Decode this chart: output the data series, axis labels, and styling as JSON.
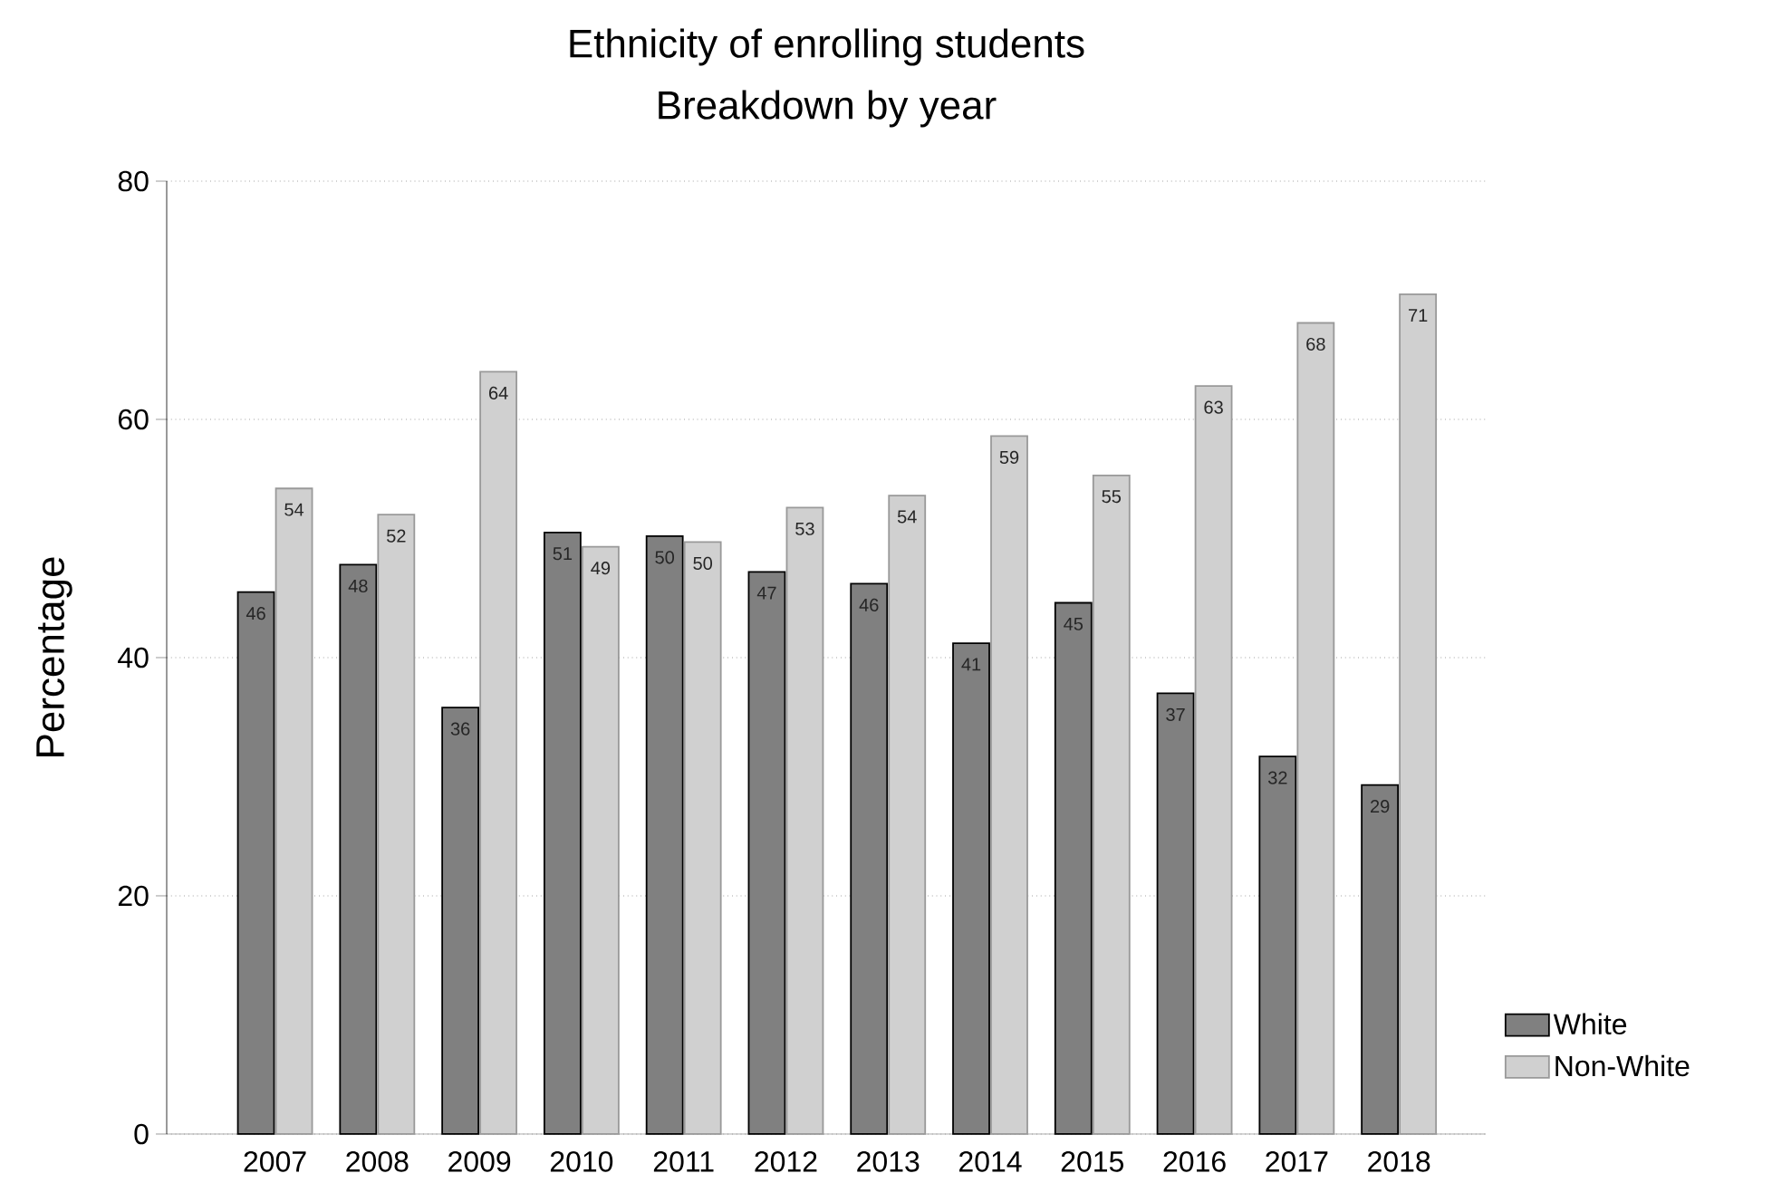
{
  "chart_data": {
    "type": "bar",
    "title": "Ethnicity of enrolling students",
    "subtitle": "Breakdown by year",
    "ylabel": "Percentage",
    "categories": [
      "2007",
      "2008",
      "2009",
      "2010",
      "2011",
      "2012",
      "2013",
      "2014",
      "2015",
      "2016",
      "2017",
      "2018"
    ],
    "series": [
      {
        "name": "White",
        "color": "#808080",
        "values": [
          45.5,
          47.8,
          35.8,
          50.5,
          50.2,
          47.2,
          46.2,
          41.2,
          44.6,
          37.0,
          31.7,
          29.3
        ],
        "value_labels": [
          "46",
          "48",
          "36",
          "51",
          "50",
          "47",
          "46",
          "41",
          "45",
          "37",
          "32",
          "29"
        ]
      },
      {
        "name": "Non-White",
        "color": "#d0d0d0",
        "values": [
          54.2,
          52.0,
          64.0,
          49.3,
          49.7,
          52.6,
          53.6,
          58.6,
          55.3,
          62.8,
          68.1,
          70.5
        ],
        "value_labels": [
          "54",
          "52",
          "64",
          "49",
          "50",
          "53",
          "54",
          "59",
          "55",
          "63",
          "68",
          "71"
        ]
      }
    ],
    "ylim": [
      0,
      80
    ],
    "yticks": [
      0,
      20,
      40,
      60,
      80
    ],
    "grid": "y",
    "legend": "right"
  }
}
